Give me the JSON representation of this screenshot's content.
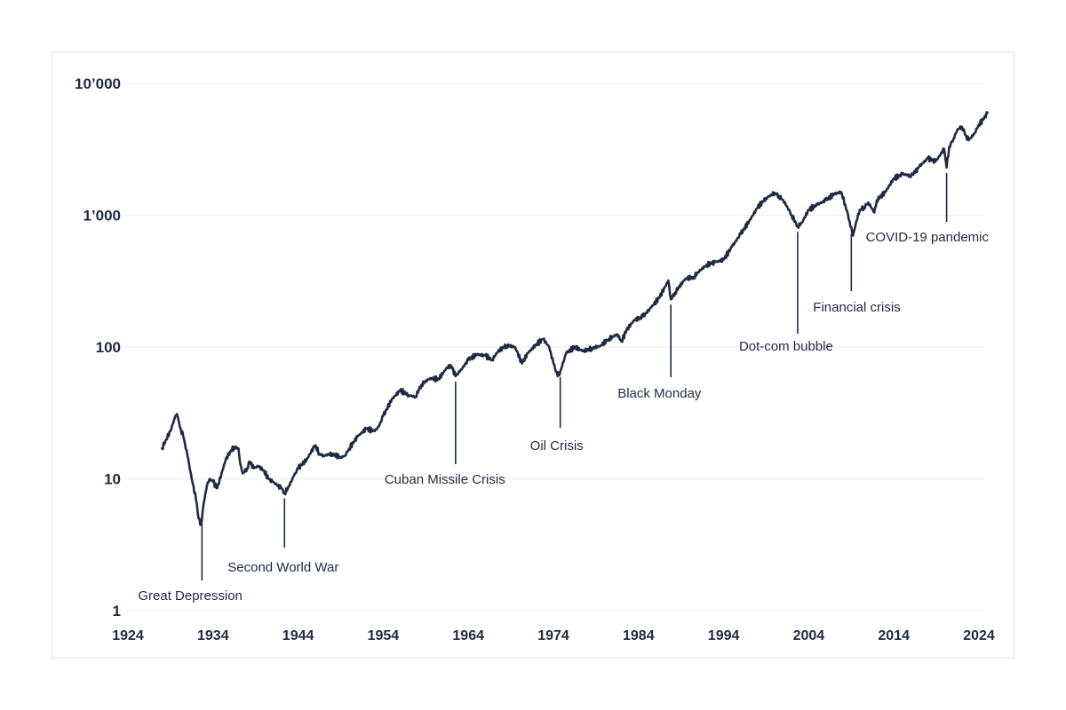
{
  "chart_data": {
    "type": "line",
    "title": "",
    "xlabel": "",
    "ylabel": "",
    "yscale": "log",
    "ylim": [
      1,
      10000
    ],
    "xlim": [
      1924,
      2026
    ],
    "grid": "horizontal",
    "y_ticks": [
      {
        "value": 1,
        "label": "1"
      },
      {
        "value": 10,
        "label": "10"
      },
      {
        "value": 100,
        "label": "100"
      },
      {
        "value": 1000,
        "label": "1’000"
      },
      {
        "value": 10000,
        "label": "10’000"
      }
    ],
    "x_ticks": [
      {
        "value": 1924,
        "label": "1924"
      },
      {
        "value": 1934,
        "label": "1934"
      },
      {
        "value": 1944,
        "label": "1944"
      },
      {
        "value": 1954,
        "label": "1954"
      },
      {
        "value": 1964,
        "label": "1964"
      },
      {
        "value": 1974,
        "label": "1974"
      },
      {
        "value": 1984,
        "label": "1984"
      },
      {
        "value": 1994,
        "label": "1994"
      },
      {
        "value": 2004,
        "label": "2004"
      },
      {
        "value": 2014,
        "label": "2014"
      },
      {
        "value": 2024,
        "label": "2024"
      }
    ],
    "series": [
      {
        "color": "#1f2a44",
        "x": [
          1928.0,
          1928.5,
          1929.0,
          1929.5,
          1929.75,
          1930.2,
          1930.5,
          1931.0,
          1931.5,
          1932.0,
          1932.3,
          1932.6,
          1932.9,
          1933.3,
          1933.6,
          1934.0,
          1934.5,
          1935.0,
          1935.5,
          1936.0,
          1936.5,
          1937.0,
          1937.2,
          1937.5,
          1938.0,
          1938.3,
          1938.8,
          1939.3,
          1940.0,
          1940.5,
          1941.0,
          1941.5,
          1942.0,
          1942.4,
          1942.8,
          1943.5,
          1944.0,
          1945.0,
          1946.0,
          1946.5,
          1947.0,
          1948.0,
          1949.0,
          1949.5,
          1950.0,
          1951.0,
          1952.0,
          1953.0,
          1953.5,
          1954.0,
          1955.0,
          1956.0,
          1957.0,
          1957.8,
          1958.5,
          1959.5,
          1960.5,
          1961.5,
          1962.0,
          1962.5,
          1963.0,
          1964.0,
          1965.0,
          1966.0,
          1966.8,
          1967.5,
          1968.5,
          1969.5,
          1970.3,
          1971.0,
          1972.0,
          1972.8,
          1973.5,
          1974.0,
          1974.5,
          1974.8,
          1975.5,
          1976.5,
          1977.5,
          1978.5,
          1979.5,
          1980.5,
          1981.5,
          1982.0,
          1982.6,
          1983.5,
          1984.5,
          1985.5,
          1986.5,
          1987.5,
          1987.8,
          1988.3,
          1989.5,
          1990.5,
          1991.0,
          1992.0,
          1993.0,
          1994.0,
          1995.0,
          1996.0,
          1997.0,
          1998.0,
          1999.0,
          2000.0,
          2000.5,
          2001.0,
          2001.5,
          2002.0,
          2002.7,
          2003.2,
          2004.0,
          2005.0,
          2006.0,
          2007.0,
          2007.8,
          2008.3,
          2008.8,
          2009.2,
          2009.6,
          2010.0,
          2010.5,
          2011.0,
          2011.7,
          2012.0,
          2013.0,
          2014.0,
          2015.0,
          2015.9,
          2016.5,
          2017.0,
          2018.0,
          2018.9,
          2019.5,
          2019.9,
          2020.2,
          2020.5,
          2021.0,
          2021.5,
          2022.0,
          2022.5,
          2022.8,
          2023.5,
          2024.0,
          2024.5,
          2025.0
        ],
        "y": [
          17,
          20,
          23,
          29,
          31,
          24,
          21,
          15,
          10,
          7,
          5.0,
          4.5,
          6.5,
          9,
          10,
          9.5,
          8.5,
          11,
          14,
          16,
          17.5,
          17,
          13,
          11,
          12,
          13.5,
          12,
          12.5,
          11.5,
          10,
          9.5,
          9,
          8.5,
          7.8,
          8.5,
          10.5,
          12,
          14,
          18,
          15.5,
          15,
          15.5,
          14.5,
          15,
          17,
          21,
          24,
          23,
          25,
          30,
          40,
          47,
          43,
          42,
          52,
          58,
          57,
          70,
          72,
          60,
          65,
          80,
          88,
          86,
          80,
          93,
          103,
          100,
          75,
          90,
          105,
          115,
          100,
          75,
          60,
          65,
          90,
          100,
          93,
          98,
          102,
          115,
          125,
          110,
          135,
          160,
          170,
          200,
          240,
          320,
          230,
          260,
          330,
          340,
          370,
          420,
          440,
          460,
          580,
          720,
          900,
          1150,
          1350,
          1480,
          1400,
          1300,
          1150,
          1000,
          820,
          880,
          1100,
          1200,
          1300,
          1450,
          1500,
          1200,
          900,
          700,
          900,
          1100,
          1150,
          1250,
          1050,
          1300,
          1500,
          1900,
          2050,
          2000,
          2100,
          2350,
          2700,
          2550,
          2900,
          3200,
          2300,
          3300,
          3800,
          4500,
          4700,
          4000,
          3700,
          4200,
          4900,
          5300,
          6000
        ]
      }
    ],
    "annotations": [
      {
        "text": "Great Depression",
        "x": 1932.7
      },
      {
        "text": "Second World War",
        "x": 1942.4
      },
      {
        "text": "Cuban Missile Crisis",
        "x": 1962.5
      },
      {
        "text": "Oil Crisis",
        "x": 1974.8
      },
      {
        "text": "Black Monday",
        "x": 1987.8
      },
      {
        "text": "Dot-com bubble",
        "x": 2002.7
      },
      {
        "text": "Financial crisis",
        "x": 2009.0
      },
      {
        "text": "COVID-19 pandemic",
        "x": 2020.2
      }
    ]
  }
}
